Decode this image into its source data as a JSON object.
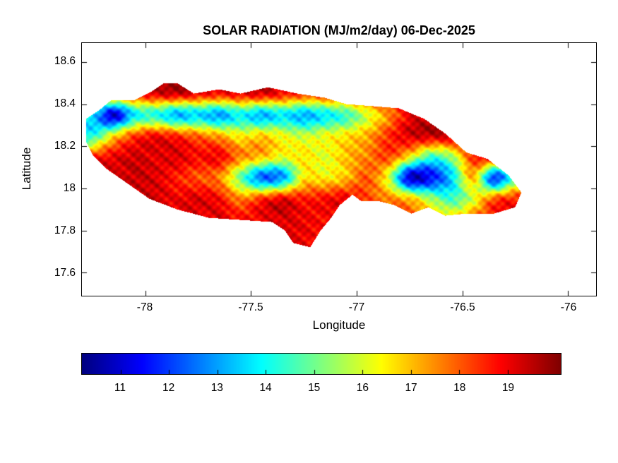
{
  "figure": {
    "background": "#ffffff"
  },
  "chart_data": {
    "type": "heatmap",
    "title": "SOLAR RADIATION (MJ/m2/day) 06-Dec-2025",
    "units": "MJ/m2/day",
    "date": "06-Dec-2025",
    "xlabel": "Longitude",
    "ylabel": "Latitude",
    "xlim": [
      -78.3,
      -75.8667
    ],
    "ylim": [
      17.49,
      18.69
    ],
    "x_ticks": [
      -78,
      -77.5,
      -77,
      -76.5,
      -76
    ],
    "x_tick_labels": [
      "-78",
      "-77.5",
      "-77",
      "-76.5",
      "-76"
    ],
    "y_ticks": [
      18.6,
      18.4,
      18.2,
      18,
      17.8,
      17.6
    ],
    "y_tick_labels": [
      "18.6",
      "18.4",
      "18.2",
      "18",
      "17.8",
      "17.6"
    ],
    "colormap": "jet",
    "color_domain": [
      10.2,
      20.1
    ],
    "colorbar_ticks": [
      11,
      12,
      13,
      14,
      15,
      16,
      17,
      18,
      19
    ],
    "colorbar_tick_labels": [
      "11",
      "12",
      "13",
      "14",
      "15",
      "16",
      "17",
      "18",
      "19"
    ],
    "grid_on": false,
    "legend": null,
    "grid": {
      "lon_start": -78.35,
      "lon_step": 0.1,
      "lat_start": 18.55,
      "lat_step": -0.1,
      "values": [
        [
          18.5,
          18.5,
          18.5,
          19,
          19,
          19.2,
          19,
          18.8,
          19,
          19,
          18.8,
          18.5,
          18.8,
          19,
          19.2,
          19.3,
          19.3,
          19.2,
          19,
          19,
          19,
          19,
          19
        ],
        [
          18,
          18.2,
          18.5,
          18.8,
          19.2,
          19.4,
          19,
          18.8,
          19,
          19.2,
          18.8,
          18.4,
          18.6,
          18.9,
          19.2,
          19.4,
          19.4,
          19.2,
          19.1,
          19,
          19,
          19,
          19
        ],
        [
          14.5,
          13.8,
          11,
          13.8,
          14.2,
          13.2,
          13.6,
          13,
          14,
          13.2,
          13.8,
          13.2,
          13.8,
          14.5,
          16,
          17.5,
          19,
          19.3,
          19.4,
          19,
          18.6,
          19,
          19
        ],
        [
          14,
          14.2,
          16.5,
          18.2,
          18.8,
          18.4,
          17.8,
          17.2,
          16.4,
          16.8,
          16.2,
          15.8,
          16.2,
          16.6,
          17.2,
          18.4,
          19.2,
          19.4,
          19.3,
          18.8,
          19,
          18.6,
          18.6
        ],
        [
          17.5,
          18.4,
          19,
          19.3,
          19.1,
          19.2,
          18.8,
          18.9,
          17.6,
          17,
          16.2,
          16.6,
          16.1,
          17,
          17.6,
          18.2,
          16.5,
          14.5,
          15.5,
          18.4,
          19.2,
          17.2,
          18
        ],
        [
          19,
          19.3,
          19.1,
          19.4,
          19.2,
          18.6,
          18.1,
          17.6,
          15,
          12.5,
          13,
          16.5,
          16.5,
          17,
          18,
          16,
          11,
          11.5,
          13.5,
          17,
          12,
          15,
          17
        ],
        [
          19,
          19.2,
          19.4,
          19.2,
          19.3,
          19,
          19.2,
          18.8,
          17.6,
          18.4,
          19,
          18.6,
          18.8,
          19,
          18.2,
          17.6,
          17,
          15.5,
          14.5,
          16,
          18,
          18.5,
          18.5
        ],
        [
          19,
          19,
          19.3,
          19.4,
          19.2,
          19.3,
          19,
          19.2,
          18.8,
          19,
          19.2,
          19,
          18.8,
          19,
          19,
          18.6,
          18,
          17.5,
          17,
          18,
          18.6,
          19,
          19
        ],
        [
          19,
          19,
          19,
          19,
          19,
          19,
          19,
          19,
          19,
          19,
          19.2,
          19,
          18.8,
          19,
          19,
          19,
          19,
          19,
          19,
          19,
          19,
          19,
          19
        ],
        [
          19,
          19,
          19,
          19,
          19,
          19,
          19,
          19,
          19,
          19,
          19,
          19,
          19,
          19,
          19,
          19,
          19,
          19,
          19,
          19,
          19,
          19,
          19
        ]
      ]
    },
    "region_outline": [
      [
        -78.28,
        18.22
      ],
      [
        -78.28,
        18.33
      ],
      [
        -78.22,
        18.37
      ],
      [
        -78.16,
        18.42
      ],
      [
        -78.05,
        18.42
      ],
      [
        -77.97,
        18.46
      ],
      [
        -77.91,
        18.5
      ],
      [
        -77.85,
        18.5
      ],
      [
        -77.77,
        18.45
      ],
      [
        -77.65,
        18.47
      ],
      [
        -77.55,
        18.45
      ],
      [
        -77.42,
        18.48
      ],
      [
        -77.28,
        18.45
      ],
      [
        -77.15,
        18.43
      ],
      [
        -77.05,
        18.4
      ],
      [
        -76.92,
        18.39
      ],
      [
        -76.8,
        18.38
      ],
      [
        -76.68,
        18.33
      ],
      [
        -76.58,
        18.26
      ],
      [
        -76.48,
        18.17
      ],
      [
        -76.38,
        18.14
      ],
      [
        -76.28,
        18.06
      ],
      [
        -76.22,
        17.98
      ],
      [
        -76.25,
        17.91
      ],
      [
        -76.35,
        17.88
      ],
      [
        -76.48,
        17.88
      ],
      [
        -76.58,
        17.87
      ],
      [
        -76.66,
        17.91
      ],
      [
        -76.74,
        17.88
      ],
      [
        -76.82,
        17.92
      ],
      [
        -76.9,
        17.94
      ],
      [
        -76.98,
        17.94
      ],
      [
        -77.02,
        17.97
      ],
      [
        -77.08,
        17.92
      ],
      [
        -77.12,
        17.86
      ],
      [
        -77.17,
        17.8
      ],
      [
        -77.22,
        17.72
      ],
      [
        -77.3,
        17.74
      ],
      [
        -77.34,
        17.8
      ],
      [
        -77.4,
        17.84
      ],
      [
        -77.55,
        17.85
      ],
      [
        -77.7,
        17.86
      ],
      [
        -77.85,
        17.9
      ],
      [
        -77.98,
        17.95
      ],
      [
        -78.08,
        18.02
      ],
      [
        -78.18,
        18.09
      ],
      [
        -78.25,
        18.16
      ]
    ]
  }
}
